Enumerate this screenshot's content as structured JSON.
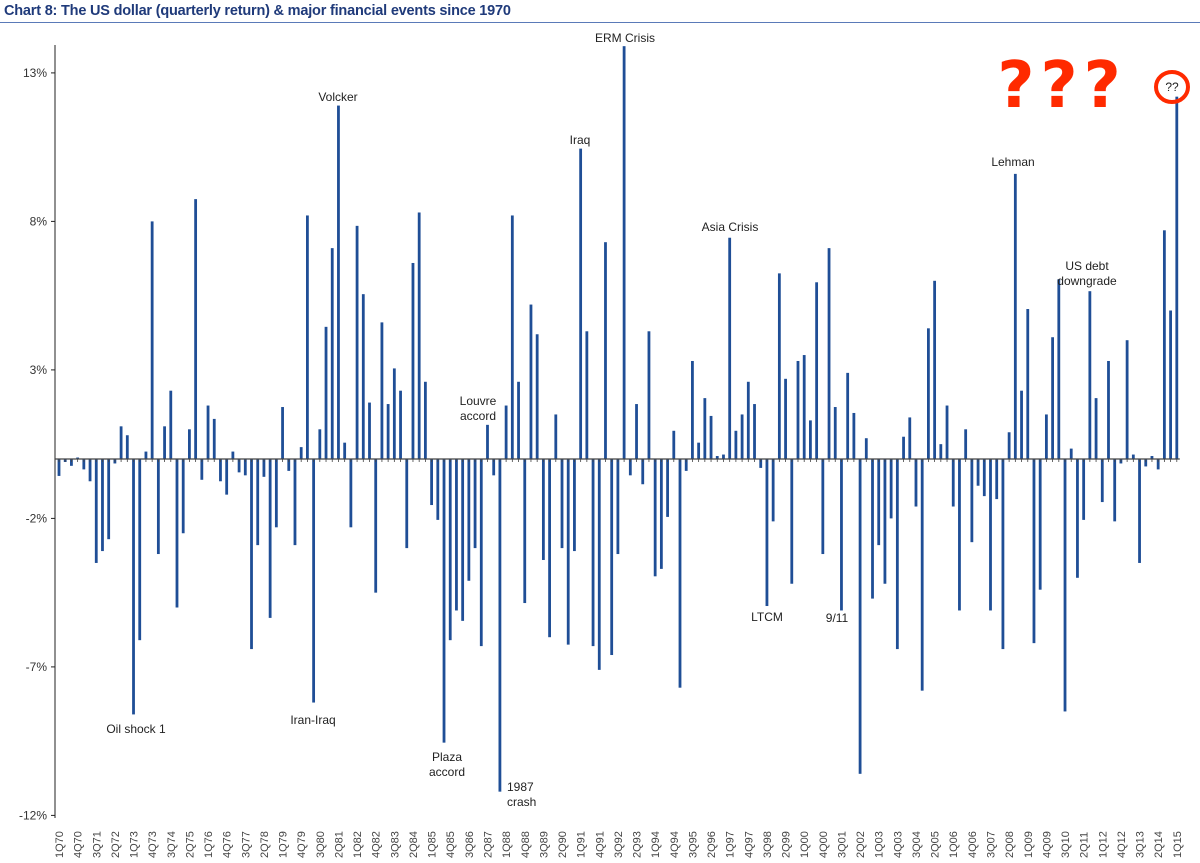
{
  "chart_data": {
    "type": "bar",
    "title": "Chart 8: The US dollar (quarterly return) & major financial events since 1970",
    "xlabel": "",
    "ylabel": "",
    "ylim": [
      -12,
      13
    ],
    "yticks": [
      "-12%",
      "-7%",
      "-2%",
      "3%",
      "8%",
      "13%"
    ],
    "ytick_values": [
      -12,
      -7,
      -2,
      3,
      8,
      13
    ],
    "grid": false,
    "bar_color": "#1f4e96",
    "x_first": "1Q70",
    "x_last": "1Q15",
    "xtick_labels": [
      "1Q70",
      "4Q70",
      "3Q71",
      "2Q72",
      "1Q73",
      "4Q73",
      "3Q74",
      "2Q75",
      "1Q76",
      "4Q76",
      "3Q77",
      "2Q78",
      "1Q79",
      "4Q79",
      "3Q80",
      "2Q81",
      "1Q82",
      "4Q82",
      "3Q83",
      "2Q84",
      "1Q85",
      "4Q85",
      "3Q86",
      "2Q87",
      "1Q88",
      "4Q88",
      "3Q89",
      "2Q90",
      "1Q91",
      "4Q91",
      "3Q92",
      "2Q93",
      "1Q94",
      "4Q94",
      "3Q95",
      "2Q96",
      "1Q97",
      "4Q97",
      "3Q98",
      "2Q99",
      "1Q00",
      "4Q00",
      "3Q01",
      "2Q02",
      "1Q03",
      "4Q03",
      "3Q04",
      "2Q05",
      "1Q06",
      "4Q06",
      "3Q07",
      "2Q08",
      "1Q09",
      "4Q09",
      "3Q10",
      "2Q11",
      "1Q12",
      "4Q12",
      "3Q13",
      "2Q14",
      "1Q15"
    ],
    "values": [
      -0.57,
      -0.1,
      -0.23,
      0.05,
      -0.35,
      -0.75,
      -3.5,
      -3.1,
      -2.7,
      -0.15,
      1.1,
      0.8,
      -8.6,
      -6.1,
      0.25,
      8.0,
      -3.2,
      1.1,
      2.3,
      -5.0,
      -2.5,
      1.0,
      8.75,
      -0.7,
      1.8,
      1.35,
      -0.75,
      -1.2,
      0.25,
      -0.45,
      -0.55,
      -6.4,
      -2.9,
      -0.6,
      -5.35,
      -2.3,
      1.75,
      -0.4,
      -2.9,
      0.4,
      8.2,
      -8.2,
      1.0,
      4.45,
      7.1,
      11.9,
      0.55,
      -2.3,
      7.85,
      5.55,
      1.9,
      -4.5,
      4.6,
      1.85,
      3.05,
      2.3,
      -3.0,
      6.6,
      8.3,
      2.6,
      -1.55,
      -2.05,
      -9.55,
      -6.1,
      -5.1,
      -5.45,
      -4.1,
      -3.0,
      -6.3,
      1.15,
      -0.55,
      -11.2,
      1.8,
      8.2,
      2.6,
      -4.85,
      5.2,
      4.2,
      -3.4,
      -6.0,
      1.5,
      -3.0,
      -6.25,
      -3.1,
      10.45,
      4.3,
      -6.3,
      -7.1,
      7.3,
      -6.6,
      -3.2,
      13.9,
      -0.55,
      1.85,
      -0.85,
      4.3,
      -3.95,
      -3.7,
      -1.95,
      0.95,
      -7.7,
      -0.4,
      3.3,
      0.55,
      2.05,
      1.45,
      0.1,
      0.15,
      7.45,
      0.95,
      1.5,
      2.6,
      1.85,
      -0.3,
      -4.95,
      -2.1,
      6.25,
      2.7,
      -4.2,
      3.3,
      3.5,
      1.3,
      5.95,
      -3.2,
      7.1,
      1.75,
      -5.1,
      2.9,
      1.55,
      -10.6,
      0.7,
      -4.7,
      -2.9,
      -4.2,
      -2.0,
      -6.4,
      0.75,
      1.4,
      -1.6,
      -7.8,
      4.4,
      6.0,
      0.5,
      1.8,
      -1.6,
      -5.1,
      1.0,
      -2.8,
      -0.9,
      -1.25,
      -5.1,
      -1.35,
      -6.4,
      0.9,
      9.6,
      2.3,
      5.05,
      -6.2,
      -4.4,
      1.5,
      4.1,
      6.05,
      -8.5,
      0.35,
      -4.0,
      -2.05,
      5.65,
      2.05,
      -1.45,
      3.3,
      -2.1,
      -0.15,
      4.0,
      0.15,
      -3.5,
      -0.25,
      0.1,
      -0.35,
      7.7,
      5.0,
      12.2
    ],
    "annotations": [
      {
        "text": [
          "Oil shock 1"
        ],
        "bar": 12
      },
      {
        "text": [
          "Iran-Iraq"
        ],
        "bar": 41
      },
      {
        "text": [
          "Volcker"
        ],
        "bar": 45
      },
      {
        "text": [
          "Plaza",
          "accord"
        ],
        "bar": 62
      },
      {
        "text": [
          "Louvre",
          "accord"
        ],
        "bar": 69
      },
      {
        "text": [
          "1987",
          "crash"
        ],
        "bar": 71
      },
      {
        "text": [
          "Iraq"
        ],
        "bar": 84
      },
      {
        "text": [
          "ERM Crisis"
        ],
        "bar": 91
      },
      {
        "text": [
          "Asia Crisis"
        ],
        "bar": 108
      },
      {
        "text": [
          "LTCM"
        ],
        "bar": 114
      },
      {
        "text": [
          "9/11"
        ],
        "bar": 126
      },
      {
        "text": [
          "Lehman"
        ],
        "bar": 154
      },
      {
        "text": [
          "US debt",
          "downgrade"
        ],
        "bar": 166
      },
      {
        "text": [
          "??"
        ],
        "bar": 180,
        "circled": true,
        "circle_color": "#ff2a00"
      }
    ],
    "overlay_text": "???",
    "overlay_color": "#ff2a00"
  }
}
